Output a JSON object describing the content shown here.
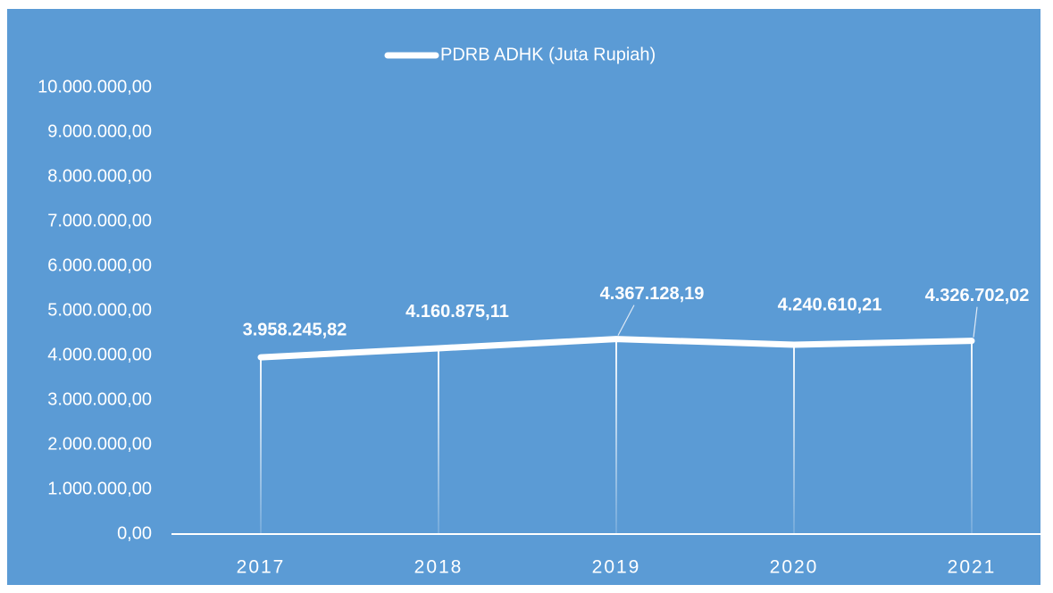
{
  "chart_data": {
    "type": "line",
    "legend": "top",
    "background": "#5b9bd5",
    "categories": [
      "2017",
      "2018",
      "2019",
      "2020",
      "2021"
    ],
    "series": [
      {
        "name": "PDRB ADHK (Juta Rupiah)",
        "color": "#ffffff",
        "values": [
          3958245.82,
          4160875.11,
          4367128.19,
          4240610.21,
          4326702.02
        ],
        "value_labels": [
          "3.958.245,82",
          "4.160.875,11",
          "4.367.128,19",
          "4.240.610,21",
          "4.326.702,02"
        ]
      }
    ],
    "ylim": [
      0,
      10000000
    ],
    "yticks": [
      {
        "value": 0,
        "label": "0,00"
      },
      {
        "value": 1000000,
        "label": "1.000.000,00"
      },
      {
        "value": 2000000,
        "label": "2.000.000,00"
      },
      {
        "value": 3000000,
        "label": "3.000.000,00"
      },
      {
        "value": 4000000,
        "label": "4.000.000,00"
      },
      {
        "value": 5000000,
        "label": "5.000.000,00"
      },
      {
        "value": 6000000,
        "label": "6.000.000,00"
      },
      {
        "value": 7000000,
        "label": "7.000.000,00"
      },
      {
        "value": 8000000,
        "label": "8.000.000,00"
      },
      {
        "value": 9000000,
        "label": "9.000.000,00"
      },
      {
        "value": 10000000,
        "label": "10.000.000,00"
      }
    ],
    "drop_lines": true
  }
}
